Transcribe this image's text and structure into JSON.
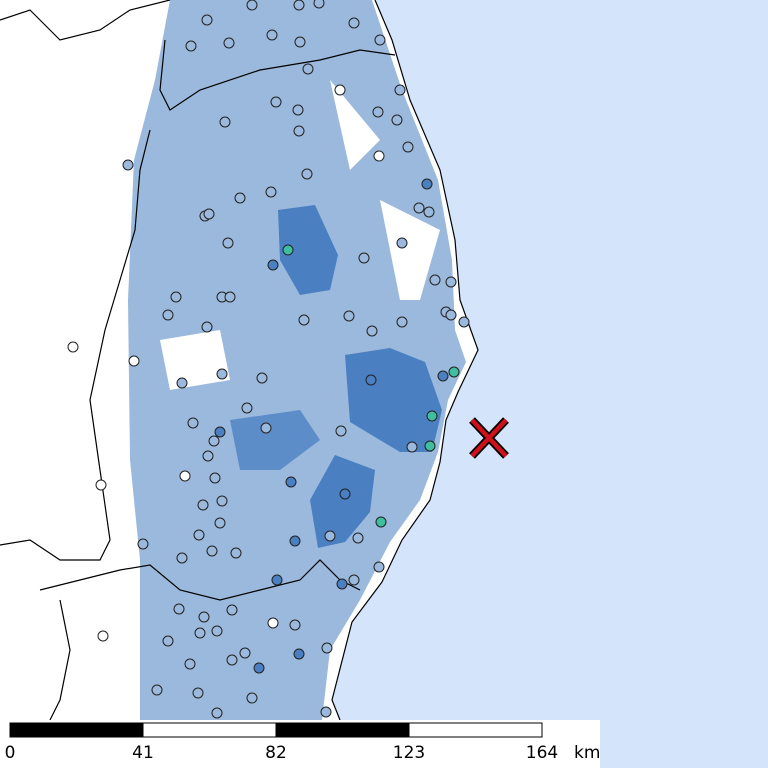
{
  "scale": {
    "labels": [
      0,
      41,
      82,
      123,
      164
    ],
    "unit": "km"
  }
}
